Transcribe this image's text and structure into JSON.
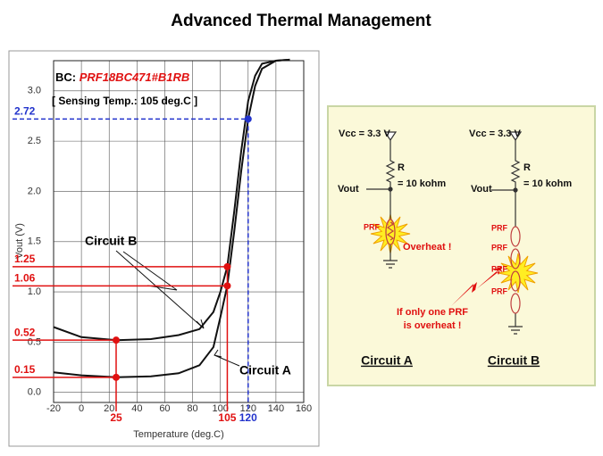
{
  "title": "Advanced Thermal Management",
  "chart_data": {
    "type": "line",
    "header": "BC: ",
    "part_number": "PRF18BC471#B1RB",
    "subtitle": "[ Sensing Temp.: 105 deg.C ]",
    "x_label": "Temperature (deg.C)",
    "y_label": "Vout (V)",
    "x": [
      -20,
      0,
      25,
      50,
      70,
      85,
      95,
      100,
      105,
      110,
      115,
      120,
      125,
      130,
      140,
      150
    ],
    "series": [
      {
        "name": "Circuit B",
        "color": "#111111",
        "values": [
          0.65,
          0.55,
          0.52,
          0.53,
          0.57,
          0.63,
          0.8,
          1.0,
          1.25,
          1.8,
          2.4,
          2.9,
          3.15,
          3.27,
          3.3,
          3.31
        ]
      },
      {
        "name": "Circuit A",
        "color": "#111111",
        "values": [
          0.2,
          0.17,
          0.15,
          0.16,
          0.19,
          0.27,
          0.45,
          0.75,
          1.06,
          1.6,
          2.2,
          2.72,
          3.05,
          3.22,
          3.3,
          3.31
        ]
      }
    ],
    "markers": [
      {
        "x": 25,
        "ys": [
          0.52,
          0.15
        ],
        "color": "#e01010"
      },
      {
        "x": 105,
        "ys": [
          1.25,
          1.06
        ],
        "color": "#e01010"
      },
      {
        "x": 120,
        "ys": [
          2.72
        ],
        "color": "#2233cc"
      }
    ],
    "xlim": [
      -20,
      160
    ],
    "ylim": [
      -0.1,
      3.3
    ],
    "xticks": [
      -20,
      0,
      20,
      40,
      60,
      80,
      100,
      120,
      140,
      160
    ],
    "yticks": [
      {
        "value": 0,
        "label": "0.0"
      },
      0.5,
      {
        "value": 1,
        "label": "1.0"
      },
      1.5,
      {
        "value": 2,
        "label": "2.0"
      },
      2.5,
      {
        "value": 3,
        "label": "3.0"
      }
    ],
    "grid": true
  },
  "diagram": {
    "circuits": [
      {
        "vcc": "Vcc = 3.3 V",
        "r": "R",
        "r_value": "= 10 kohm",
        "vout": "Vout",
        "prf_labels": [
          "PRF"
        ],
        "caption": "Circuit A"
      },
      {
        "vcc": "Vcc = 3.3 V",
        "r": "R",
        "r_value": "= 10 kohm",
        "vout": "Vout",
        "prf_labels": [
          "PRF",
          "PRF",
          "PRF",
          "PRF"
        ],
        "caption": "Circuit B"
      }
    ],
    "overheat": "Overheat !",
    "note": [
      "If only one PRF",
      "is overheat !"
    ]
  }
}
